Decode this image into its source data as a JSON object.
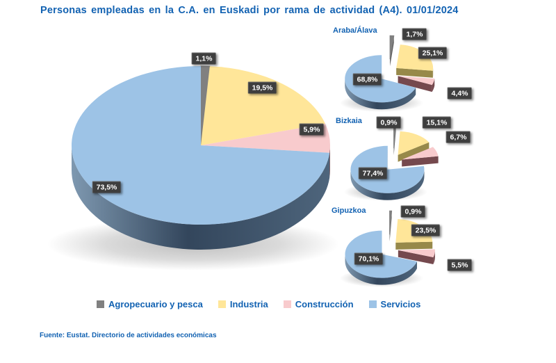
{
  "title": "Personas empleadas en la C.A. en Euskadi por rama de actividad (A4). 01/01/2024",
  "source": "Fuente: Eustat. Directorio de actividades económicas",
  "colors": {
    "agro": "#808080",
    "industria": "#FFE699",
    "construccion": "#F8CBCD",
    "servicios": "#9DC3E6",
    "agro_side": "#595959",
    "industria_side": "#97894A",
    "construccion_side": "#75494E",
    "servicios_side_light": "#7E98B0",
    "servicios_side_dark": "#33465C",
    "text_blue": "#1262b2",
    "label_bg": "#3e3e3e",
    "label_fg": "#ffffff"
  },
  "legend": [
    {
      "label": "Agropecuario y pesca",
      "color_key": "agro"
    },
    {
      "label": "Industria",
      "color_key": "industria"
    },
    {
      "label": "Construcción",
      "color_key": "construccion"
    },
    {
      "label": "Servicios",
      "color_key": "servicios"
    }
  ],
  "chart_data": {
    "type": "pie",
    "title": "Personas empleadas en la C.A. en Euskadi por rama de actividad (A4). 01/01/2024",
    "unit": "%",
    "categories": [
      "Agropecuario y pesca",
      "Industria",
      "Construcción",
      "Servicios"
    ],
    "legend_position": "bottom",
    "style": "3d-pie, regional pies exploded",
    "charts": [
      {
        "name": "Euskadi",
        "exploded": false,
        "values": [
          1.1,
          19.5,
          5.9,
          73.5
        ],
        "labels": [
          "1,1%",
          "19,5%",
          "5,9%",
          "73,5%"
        ]
      },
      {
        "name": "Araba/Álava",
        "exploded": true,
        "values": [
          1.7,
          25.1,
          4.4,
          68.8
        ],
        "labels": [
          "1,7%",
          "25,1%",
          "4,4%",
          "68,8%"
        ]
      },
      {
        "name": "Bizkaia",
        "exploded": true,
        "values": [
          0.9,
          15.1,
          6.7,
          77.4
        ],
        "labels": [
          "0,9%",
          "15,1%",
          "6,7%",
          "77,4%"
        ]
      },
      {
        "name": "Gipuzkoa",
        "exploded": true,
        "values": [
          0.9,
          23.5,
          5.5,
          70.1
        ],
        "labels": [
          "0,9%",
          "23,5%",
          "5,5%",
          "70,1%"
        ]
      }
    ]
  }
}
